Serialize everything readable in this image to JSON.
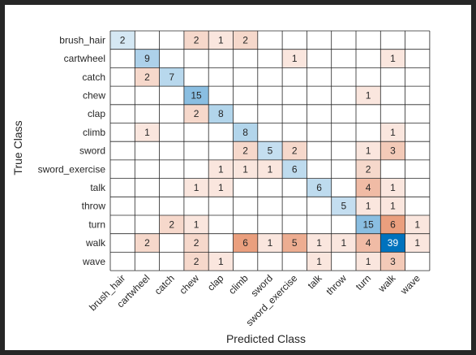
{
  "chart_data": {
    "type": "heatmap",
    "title": "",
    "xlabel": "Predicted Class",
    "ylabel": "True Class",
    "classes": [
      "brush_hair",
      "cartwheel",
      "catch",
      "chew",
      "clap",
      "climb",
      "sword",
      "sword_exercise",
      "talk",
      "throw",
      "turn",
      "walk",
      "wave"
    ],
    "matrix": [
      [
        2,
        0,
        0,
        2,
        1,
        2,
        0,
        0,
        0,
        0,
        0,
        0,
        0
      ],
      [
        0,
        9,
        0,
        0,
        0,
        0,
        0,
        1,
        0,
        0,
        0,
        1,
        0
      ],
      [
        0,
        2,
        7,
        0,
        0,
        0,
        0,
        0,
        0,
        0,
        0,
        0,
        0
      ],
      [
        0,
        0,
        0,
        15,
        0,
        0,
        0,
        0,
        0,
        0,
        1,
        0,
        0
      ],
      [
        0,
        0,
        0,
        2,
        8,
        0,
        0,
        0,
        0,
        0,
        0,
        0,
        0
      ],
      [
        0,
        1,
        0,
        0,
        0,
        8,
        0,
        0,
        0,
        0,
        0,
        1,
        0
      ],
      [
        0,
        0,
        0,
        0,
        0,
        2,
        5,
        2,
        0,
        0,
        1,
        3,
        0
      ],
      [
        0,
        0,
        0,
        0,
        1,
        1,
        1,
        6,
        0,
        0,
        2,
        0,
        0
      ],
      [
        0,
        0,
        0,
        1,
        1,
        0,
        0,
        0,
        6,
        0,
        4,
        1,
        0
      ],
      [
        0,
        0,
        0,
        0,
        0,
        0,
        0,
        0,
        0,
        5,
        1,
        1,
        0
      ],
      [
        0,
        0,
        2,
        1,
        0,
        0,
        0,
        0,
        0,
        0,
        15,
        6,
        1
      ],
      [
        0,
        2,
        0,
        2,
        0,
        6,
        1,
        5,
        1,
        1,
        4,
        39,
        1
      ],
      [
        0,
        0,
        0,
        2,
        1,
        0,
        0,
        0,
        1,
        0,
        1,
        3,
        0
      ]
    ],
    "colors": {
      "diagonal_max": "#0072BD",
      "off_diagonal_max": "#D95319",
      "grid": "#262626",
      "text_dark": "#262626",
      "text_light": "#ffffff"
    },
    "grid": true,
    "legend": "none"
  }
}
